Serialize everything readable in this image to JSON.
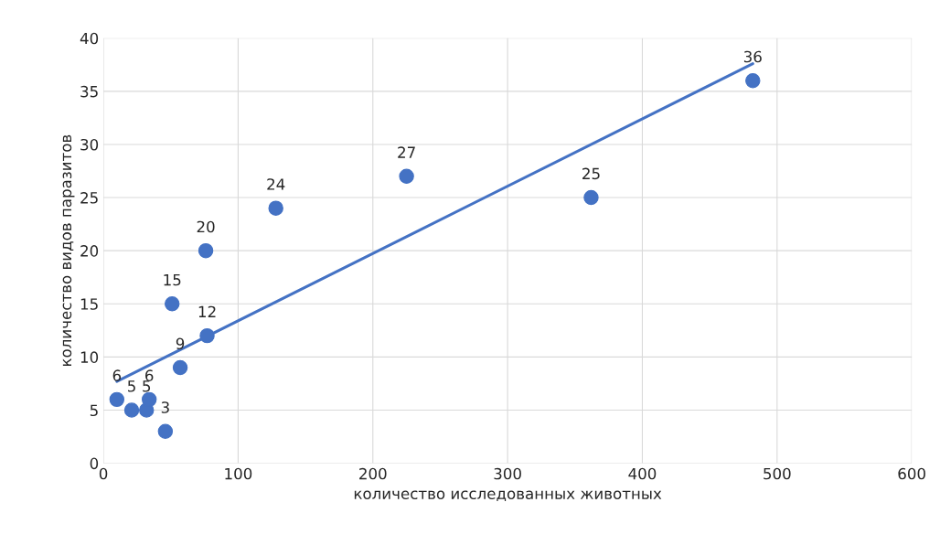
{
  "chart_data": {
    "type": "scatter",
    "xlabel": "количество исследованных животных",
    "ylabel": "количество видов паразитов",
    "xlim": [
      0,
      600
    ],
    "xticks": [
      0,
      100,
      200,
      300,
      400,
      500,
      600
    ],
    "ylim": [
      0,
      40
    ],
    "yticks": [
      0,
      5,
      10,
      15,
      20,
      25,
      30,
      35,
      40
    ],
    "grid": true,
    "series": [
      {
        "color": "#4472c4",
        "marker": "circle",
        "x": [
          10,
          21,
          32,
          34,
          46,
          51,
          57,
          76,
          77,
          128,
          225,
          362,
          482
        ],
        "values": [
          6,
          5,
          5,
          6,
          3,
          15,
          9,
          20,
          12,
          24,
          27,
          25,
          36
        ],
        "value_labels": [
          "6",
          "5",
          "5",
          "6",
          "3",
          "15",
          "9",
          "20",
          "12",
          "24",
          "27",
          "25",
          "36"
        ]
      },
      {
        "type": "line",
        "color": "#4472c4",
        "marker": "none",
        "x": [
          10,
          482
        ],
        "values": [
          7.7,
          37.6
        ],
        "line_style": "solid"
      }
    ]
  }
}
